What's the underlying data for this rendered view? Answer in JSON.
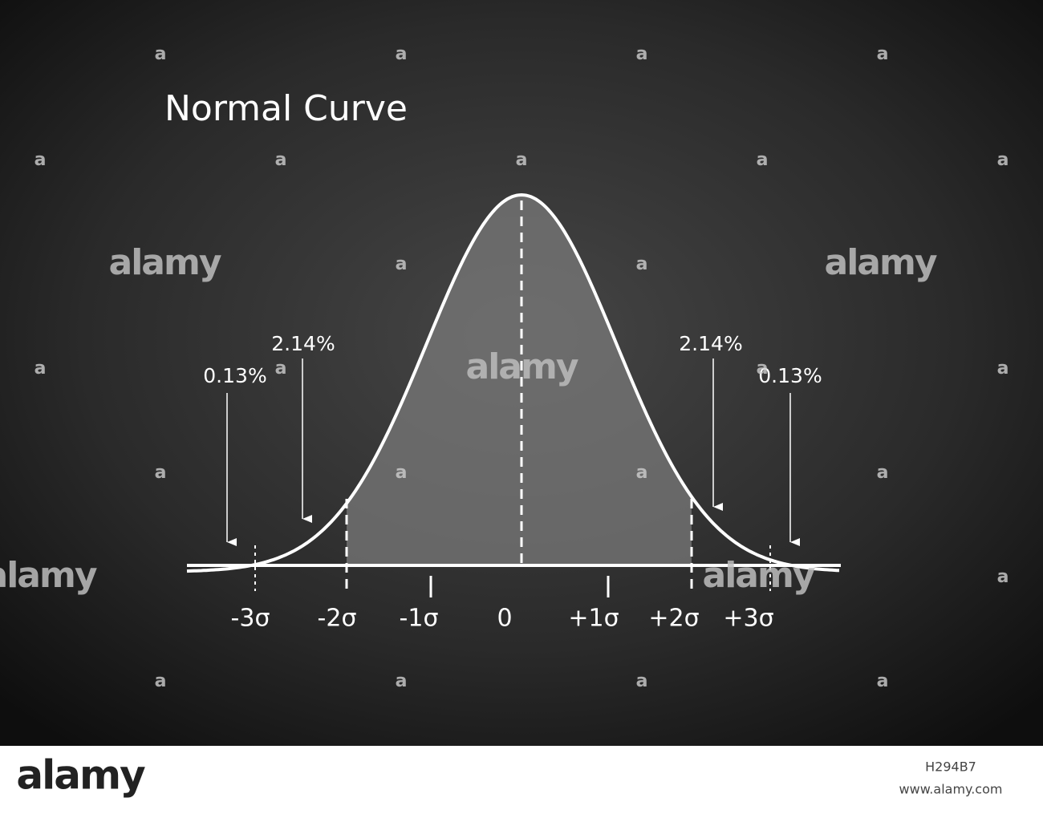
{
  "header": {
    "title": "Normal Curve"
  },
  "axis_labels": [
    "-3σ",
    "-2σ",
    "-1σ",
    "0",
    "+1σ",
    "+2σ",
    "+3σ"
  ],
  "annotations": [
    "0.13%",
    "2.14%",
    "2.14%",
    "0.13%"
  ],
  "watermark": {
    "brand": "alamy",
    "mark": "a",
    "image_id": "H294B7",
    "url": "www.alamy.com"
  }
}
